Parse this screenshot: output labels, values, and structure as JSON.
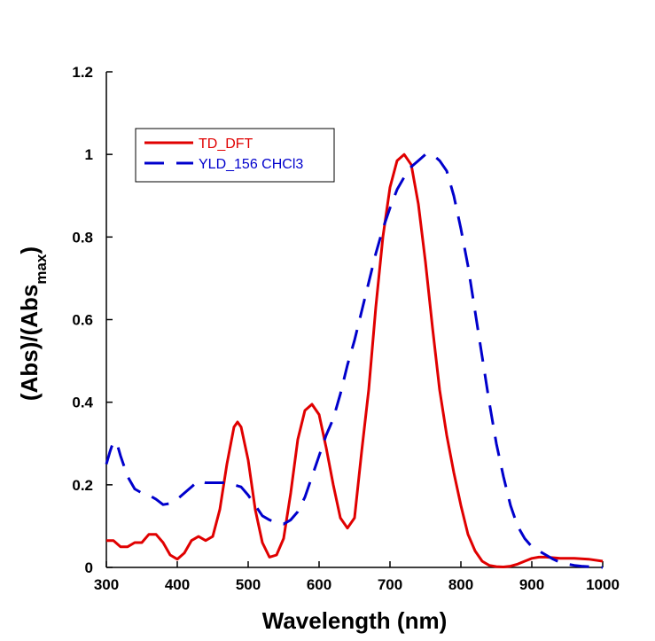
{
  "chart_data": {
    "type": "line",
    "xlabel": "Wavelength (nm)",
    "ylabel_main": "(Abs)/(Abs",
    "ylabel_sub": "max",
    "ylabel_close": ")",
    "xlim": [
      300,
      1000
    ],
    "ylim": [
      0,
      1.2
    ],
    "xticks": [
      300,
      400,
      500,
      600,
      700,
      800,
      900,
      1000
    ],
    "yticks": [
      0,
      0.2,
      0.4,
      0.6,
      0.8,
      1,
      1.2
    ],
    "ytick_labels": [
      "0",
      "0.2",
      "0.4",
      "0.6",
      "0.8",
      "1",
      "1.2"
    ],
    "grid": false,
    "legend_position": "top-left",
    "series": [
      {
        "name": "TD_DFT",
        "color": "#e00000",
        "style": "solid",
        "points": [
          [
            300,
            0.065
          ],
          [
            310,
            0.065
          ],
          [
            320,
            0.05
          ],
          [
            330,
            0.05
          ],
          [
            340,
            0.06
          ],
          [
            350,
            0.06
          ],
          [
            360,
            0.08
          ],
          [
            370,
            0.08
          ],
          [
            380,
            0.06
          ],
          [
            390,
            0.03
          ],
          [
            400,
            0.02
          ],
          [
            410,
            0.035
          ],
          [
            420,
            0.065
          ],
          [
            430,
            0.075
          ],
          [
            440,
            0.065
          ],
          [
            450,
            0.075
          ],
          [
            460,
            0.14
          ],
          [
            470,
            0.25
          ],
          [
            480,
            0.34
          ],
          [
            485,
            0.352
          ],
          [
            490,
            0.34
          ],
          [
            500,
            0.26
          ],
          [
            510,
            0.14
          ],
          [
            520,
            0.06
          ],
          [
            530,
            0.025
          ],
          [
            540,
            0.03
          ],
          [
            550,
            0.07
          ],
          [
            560,
            0.18
          ],
          [
            570,
            0.31
          ],
          [
            580,
            0.38
          ],
          [
            590,
            0.395
          ],
          [
            600,
            0.37
          ],
          [
            610,
            0.29
          ],
          [
            620,
            0.2
          ],
          [
            630,
            0.12
          ],
          [
            640,
            0.095
          ],
          [
            650,
            0.12
          ],
          [
            660,
            0.28
          ],
          [
            670,
            0.43
          ],
          [
            680,
            0.63
          ],
          [
            690,
            0.8
          ],
          [
            700,
            0.92
          ],
          [
            710,
            0.985
          ],
          [
            720,
            1.0
          ],
          [
            730,
            0.975
          ],
          [
            740,
            0.88
          ],
          [
            750,
            0.74
          ],
          [
            760,
            0.58
          ],
          [
            770,
            0.43
          ],
          [
            780,
            0.32
          ],
          [
            790,
            0.23
          ],
          [
            800,
            0.15
          ],
          [
            810,
            0.08
          ],
          [
            820,
            0.04
          ],
          [
            830,
            0.015
          ],
          [
            840,
            0.005
          ],
          [
            850,
            0.002
          ],
          [
            860,
            0.001
          ],
          [
            870,
            0.003
          ],
          [
            880,
            0.008
          ],
          [
            890,
            0.015
          ],
          [
            900,
            0.022
          ],
          [
            910,
            0.025
          ],
          [
            920,
            0.025
          ],
          [
            940,
            0.022
          ],
          [
            960,
            0.022
          ],
          [
            980,
            0.02
          ],
          [
            1000,
            0.015
          ]
        ]
      },
      {
        "name": "YLD_156 CHCl3",
        "color": "#0000cc",
        "style": "dashed",
        "points": [
          [
            300,
            0.25
          ],
          [
            305,
            0.28
          ],
          [
            310,
            0.305
          ],
          [
            315,
            0.3
          ],
          [
            320,
            0.27
          ],
          [
            330,
            0.22
          ],
          [
            340,
            0.19
          ],
          [
            350,
            0.18
          ],
          [
            360,
            0.175
          ],
          [
            370,
            0.165
          ],
          [
            380,
            0.152
          ],
          [
            390,
            0.155
          ],
          [
            400,
            0.165
          ],
          [
            410,
            0.18
          ],
          [
            420,
            0.195
          ],
          [
            430,
            0.21
          ],
          [
            440,
            0.205
          ],
          [
            450,
            0.205
          ],
          [
            460,
            0.205
          ],
          [
            470,
            0.205
          ],
          [
            480,
            0.2
          ],
          [
            490,
            0.195
          ],
          [
            500,
            0.175
          ],
          [
            510,
            0.15
          ],
          [
            520,
            0.125
          ],
          [
            530,
            0.115
          ],
          [
            540,
            0.108
          ],
          [
            550,
            0.105
          ],
          [
            560,
            0.115
          ],
          [
            570,
            0.135
          ],
          [
            580,
            0.17
          ],
          [
            590,
            0.22
          ],
          [
            600,
            0.27
          ],
          [
            610,
            0.32
          ],
          [
            620,
            0.36
          ],
          [
            630,
            0.42
          ],
          [
            640,
            0.49
          ],
          [
            650,
            0.55
          ],
          [
            660,
            0.62
          ],
          [
            670,
            0.69
          ],
          [
            680,
            0.76
          ],
          [
            690,
            0.82
          ],
          [
            700,
            0.87
          ],
          [
            710,
            0.915
          ],
          [
            720,
            0.945
          ],
          [
            730,
            0.97
          ],
          [
            740,
            0.985
          ],
          [
            750,
            1.0
          ],
          [
            760,
            1.0
          ],
          [
            770,
            0.985
          ],
          [
            780,
            0.96
          ],
          [
            790,
            0.9
          ],
          [
            800,
            0.82
          ],
          [
            810,
            0.73
          ],
          [
            820,
            0.62
          ],
          [
            830,
            0.51
          ],
          [
            840,
            0.4
          ],
          [
            850,
            0.3
          ],
          [
            860,
            0.22
          ],
          [
            870,
            0.15
          ],
          [
            880,
            0.1
          ],
          [
            890,
            0.07
          ],
          [
            900,
            0.05
          ],
          [
            910,
            0.04
          ],
          [
            920,
            0.03
          ],
          [
            930,
            0.02
          ],
          [
            940,
            0.012
          ],
          [
            950,
            0.008
          ],
          [
            960,
            0.005
          ],
          [
            970,
            0.003
          ],
          [
            980,
            0.002
          ],
          [
            990,
            0.001
          ],
          [
            1000,
            0.0
          ]
        ]
      }
    ]
  }
}
